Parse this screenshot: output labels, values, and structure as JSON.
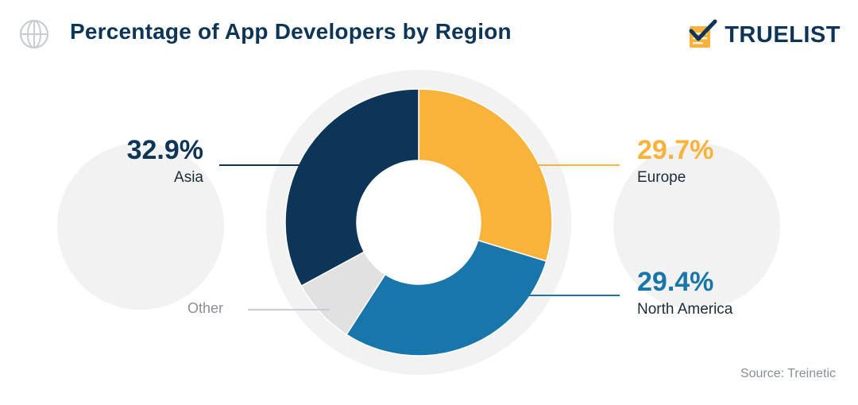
{
  "header": {
    "title": "Percentage of App Developers by Region",
    "brand": "TRUELIST",
    "globe_icon": "globe-icon",
    "brand_icon": "checklist-icon"
  },
  "chart_data": {
    "type": "pie",
    "variant": "donut",
    "title": "Percentage of App Developers by Region",
    "slices": [
      {
        "label": "Europe",
        "value": 29.7,
        "display": "29.7%",
        "color": "#f9b23a"
      },
      {
        "label": "North America",
        "value": 29.4,
        "display": "29.4%",
        "color": "#1876aa"
      },
      {
        "label": "Other",
        "value": 8.0,
        "display": "",
        "color": "#e1e1e1"
      },
      {
        "label": "Asia",
        "value": 32.9,
        "display": "32.9%",
        "color": "#0d3557"
      }
    ]
  },
  "footer": {
    "source": "Source: Treinetic"
  },
  "colors": {
    "navy": "#0d3557",
    "orange": "#f9b23a",
    "blue": "#1876aa",
    "gray": "#e1e1e1",
    "background_circle": "#f2f2f2"
  }
}
